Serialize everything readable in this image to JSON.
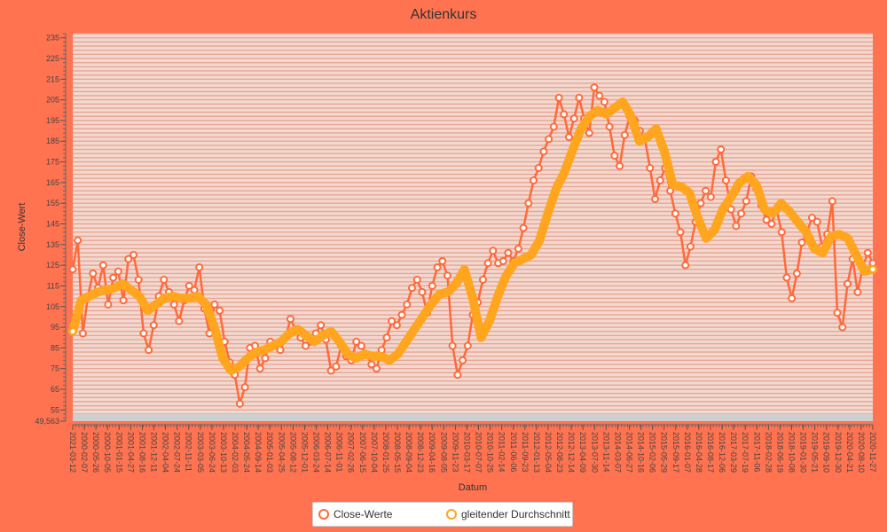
{
  "chart_data": {
    "type": "line",
    "title": "Aktienkurs",
    "xlabel": "Datum",
    "ylabel": "Close-Wert",
    "ylim": [
      49.563,
      237
    ],
    "y_ticks": [
      "49,563",
      "55",
      "65",
      "75",
      "85",
      "95",
      "105",
      "115",
      "125",
      "135",
      "145",
      "155",
      "165",
      "175",
      "185",
      "195",
      "205",
      "215",
      "225",
      "235"
    ],
    "x_ticks": [
      "2021-03-12",
      "2000-02-07",
      "2000-05-26",
      "2000-10-05",
      "2001-01-15",
      "2001-04-27",
      "2001-08-16",
      "2001-12-11",
      "2002-04-04",
      "2002-07-24",
      "2002-11-11",
      "2003-03-05",
      "2003-06-24",
      "2003-10-13",
      "2004-02-03",
      "2004-05-24",
      "2004-09-14",
      "2005-01-03",
      "2005-04-25",
      "2005-08-12",
      "2005-12-01",
      "2006-03-24",
      "2006-07-14",
      "2006-11-01",
      "2007-02-26",
      "2007-06-15",
      "2007-10-04",
      "2008-01-25",
      "2008-05-15",
      "2008-09-04",
      "2008-12-23",
      "2009-04-16",
      "2009-08-05",
      "2009-11-23",
      "2010-03-17",
      "2010-07-07",
      "2010-10-25",
      "2011-02-14",
      "2011-06-06",
      "2011-09-23",
      "2012-01-13",
      "2012-05-04",
      "2012-08-23",
      "2012-12-14",
      "2013-04-09",
      "2013-07-30",
      "2013-11-14",
      "2014-03-07",
      "2014-06-27",
      "2014-10-16",
      "2015-02-06",
      "2015-05-29",
      "2015-09-17",
      "2016-01-07",
      "2016-04-28",
      "2016-08-17",
      "2016-12-06",
      "2017-03-29",
      "2017-07-19",
      "2017-11-06",
      "2018-02-28",
      "2018-06-19",
      "2018-10-08",
      "2019-01-30",
      "2019-05-21",
      "2019-09-10",
      "2019-12-30",
      "2020-04-21",
      "2020-08-10",
      "2020-11-27"
    ],
    "series": [
      {
        "name": "Close-Werte",
        "color": "#ff6a3c",
        "values": [
          123,
          137,
          92,
          110,
          121,
          114,
          125,
          106,
          119,
          122,
          108,
          128,
          130,
          118,
          92,
          84,
          96,
          110,
          118,
          112,
          106,
          98,
          108,
          115,
          113,
          124,
          104,
          92,
          106,
          103,
          88,
          78,
          72,
          58,
          66,
          85,
          86,
          75,
          80,
          88,
          86,
          84,
          90,
          99,
          94,
          90,
          86,
          88,
          92,
          96,
          89,
          74,
          76,
          86,
          81,
          79,
          88,
          86,
          82,
          77,
          75,
          84,
          90,
          98,
          96,
          101,
          106,
          114,
          118,
          112,
          102,
          115,
          124,
          127,
          120,
          86,
          72,
          79,
          86,
          101,
          107,
          118,
          126,
          132,
          126,
          127,
          131,
          127,
          133,
          143,
          155,
          166,
          172,
          180,
          186,
          192,
          206,
          198,
          187,
          196,
          206,
          196,
          189,
          211,
          207,
          204,
          192,
          178,
          173,
          188,
          197,
          195,
          190,
          186,
          172,
          157,
          166,
          172,
          161,
          150,
          141,
          125,
          134,
          146,
          155,
          161,
          158,
          175,
          181,
          166,
          152,
          144,
          150,
          156,
          168,
          162,
          154,
          147,
          145,
          152,
          141,
          119,
          109,
          121,
          136,
          141,
          148,
          146,
          134,
          140,
          156,
          102,
          95,
          116,
          128,
          112,
          124,
          131,
          126
        ],
        "note": "approximate"
      },
      {
        "name": "gleitender Durchschnitt",
        "color": "#ffa51e",
        "values": [
          93,
          108,
          110,
          112,
          113,
          114,
          116,
          113,
          110,
          103,
          106,
          109,
          110,
          109,
          109,
          110,
          106,
          95,
          80,
          74,
          76,
          80,
          83,
          84,
          86,
          88,
          92,
          94,
          91,
          88,
          91,
          93,
          88,
          82,
          80,
          82,
          81,
          81,
          79,
          82,
          88,
          94,
          100,
          106,
          111,
          112,
          116,
          123,
          109,
          90,
          98,
          110,
          120,
          126,
          128,
          130,
          137,
          150,
          162,
          170,
          181,
          191,
          197,
          200,
          198,
          201,
          204,
          197,
          185,
          187,
          191,
          180,
          164,
          163,
          160,
          148,
          138,
          142,
          152,
          158,
          165,
          168,
          164,
          152,
          150,
          155,
          151,
          146,
          141,
          133,
          131,
          139,
          140,
          138,
          130,
          122,
          123
        ],
        "note": "approximate"
      }
    ],
    "grid": true,
    "legend": "bottom"
  }
}
